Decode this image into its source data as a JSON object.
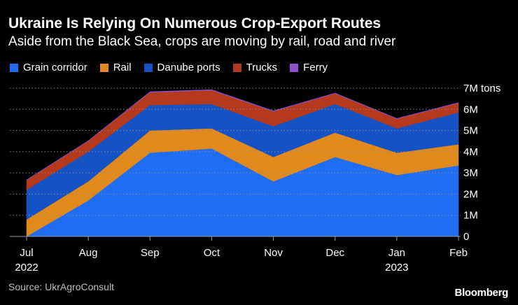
{
  "title": "Ukraine Is Relying On Numerous Crop-Export Routes",
  "subtitle": "Aside from the Black Sea, crops are moving by rail, road and river",
  "source": "Source: UkrAgroConsult",
  "brand": "Bloomberg",
  "legend": [
    {
      "label": "Grain corridor",
      "color": "#1f6df2"
    },
    {
      "label": "Rail",
      "color": "#e08a1e"
    },
    {
      "label": "Danube ports",
      "color": "#1552c4"
    },
    {
      "label": "Trucks",
      "color": "#b5391c"
    },
    {
      "label": "Ferry",
      "color": "#8e52cc"
    }
  ],
  "chart_data": {
    "type": "area",
    "stacked": true,
    "title": "Ukraine Is Relying On Numerous Crop-Export Routes",
    "ylabel": "Million tons",
    "ylim": [
      0,
      7
    ],
    "yticks": [
      0,
      1,
      2,
      3,
      4,
      5,
      6,
      7
    ],
    "ytick_labels": [
      "0",
      "1M",
      "2M",
      "3M",
      "4M",
      "5M",
      "6M",
      "7M tons"
    ],
    "categories": [
      "Jul",
      "Aug",
      "Sep",
      "Oct",
      "Nov",
      "Dec",
      "Jan",
      "Feb"
    ],
    "year_labels": [
      {
        "index": 0,
        "label": "2022"
      },
      {
        "index": 6,
        "label": "2023"
      }
    ],
    "series": [
      {
        "name": "Grain corridor",
        "color": "#1f6df2",
        "values": [
          0.0,
          1.7,
          3.95,
          4.15,
          2.6,
          3.75,
          2.9,
          3.35
        ]
      },
      {
        "name": "Rail",
        "color": "#e08a1e",
        "values": [
          0.8,
          0.9,
          1.05,
          0.95,
          1.15,
          1.15,
          1.05,
          1.0
        ]
      },
      {
        "name": "Danube ports",
        "color": "#1552c4",
        "values": [
          1.4,
          1.4,
          1.2,
          1.15,
          1.45,
          1.35,
          1.15,
          1.5
        ]
      },
      {
        "name": "Trucks",
        "color": "#b5391c",
        "values": [
          0.45,
          0.5,
          0.6,
          0.65,
          0.7,
          0.5,
          0.45,
          0.45
        ]
      },
      {
        "name": "Ferry",
        "color": "#8e52cc",
        "values": [
          0.02,
          0.02,
          0.03,
          0.03,
          0.03,
          0.02,
          0.02,
          0.02
        ]
      }
    ]
  }
}
